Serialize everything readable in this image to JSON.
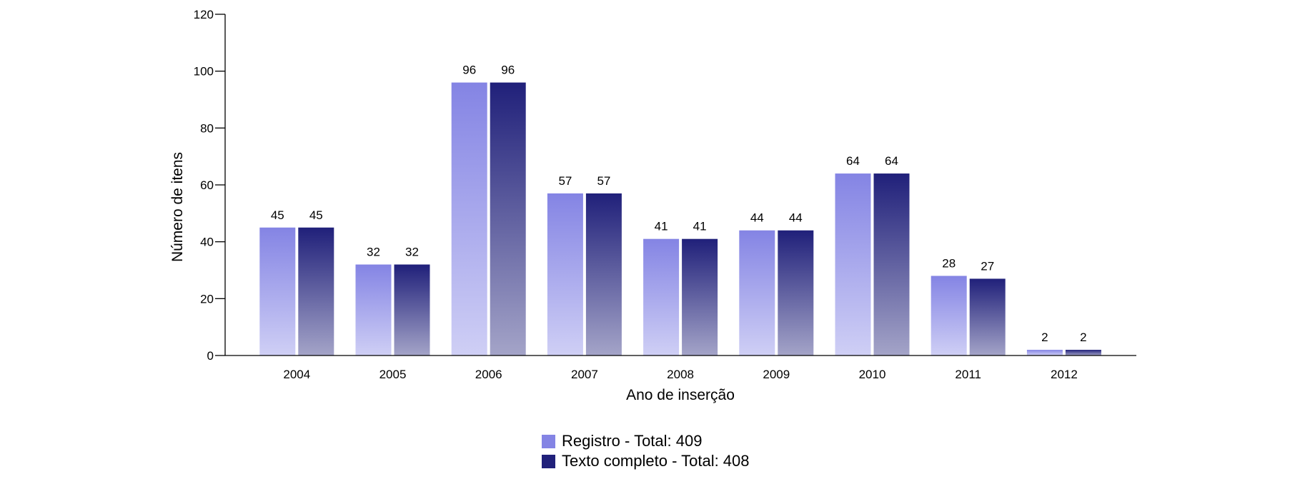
{
  "chart_data": {
    "type": "bar",
    "title": "",
    "xlabel": "Ano de inserção",
    "ylabel": "Número de itens",
    "ylim": [
      0,
      120
    ],
    "yticks": [
      0,
      20,
      40,
      60,
      80,
      100,
      120
    ],
    "categories": [
      "2004",
      "2005",
      "2006",
      "2007",
      "2008",
      "2009",
      "2010",
      "2011",
      "2012"
    ],
    "series": [
      {
        "name": "Registro",
        "legend": "Registro - Total: 409",
        "values": [
          45,
          32,
          96,
          57,
          41,
          44,
          64,
          28,
          2
        ],
        "color": "#8484e4"
      },
      {
        "name": "Texto completo",
        "legend": "Texto completo - Total: 408",
        "values": [
          45,
          32,
          96,
          57,
          41,
          44,
          64,
          27,
          2
        ],
        "color": "#20207a"
      }
    ],
    "legend_position": "bottom-center",
    "grid": false
  }
}
